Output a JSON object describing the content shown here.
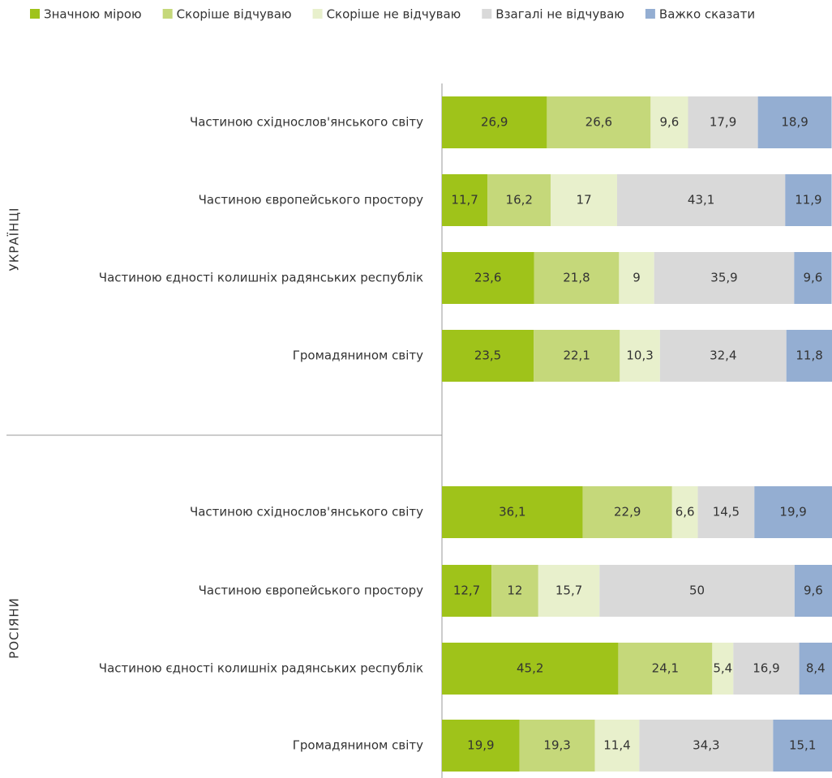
{
  "chart_data": [
    {
      "type": "stacked-bar",
      "group_label": "УКРАЇНЦІ",
      "xlim": [
        0,
        100
      ],
      "categories": [
        "Частиною східнослов'янського світу",
        "Частиною європейського простору",
        "Частиною єдності колишніх радянських республік",
        "Громадянином світу"
      ],
      "series": [
        {
          "name": "Значною мірою",
          "color": "#9fc31a",
          "values": [
            26.9,
            11.7,
            23.6,
            23.5
          ],
          "value_labels": [
            "26,9",
            "11,7",
            "23,6",
            "23,5"
          ]
        },
        {
          "name": "Скоріше відчуваю",
          "color": "#c5d87a",
          "values": [
            26.6,
            16.2,
            21.8,
            22.1
          ],
          "value_labels": [
            "26,6",
            "16,2",
            "21,8",
            "22,1"
          ]
        },
        {
          "name": "Скоріше не відчуваю",
          "color": "#e8f0cc",
          "values": [
            9.6,
            17,
            9,
            10.3
          ],
          "value_labels": [
            "9,6",
            "17",
            "9",
            "10,3"
          ]
        },
        {
          "name": "Взагалі не відчуваю",
          "color": "#d9d9d9",
          "values": [
            17.9,
            43.1,
            35.9,
            32.4
          ],
          "value_labels": [
            "17,9",
            "43,1",
            "35,9",
            "32,4"
          ]
        },
        {
          "name": "Важко сказати",
          "color": "#94aed2",
          "values": [
            18.9,
            11.9,
            9.6,
            11.8
          ],
          "value_labels": [
            "18,9",
            "11,9",
            "9,6",
            "11,8"
          ]
        }
      ]
    },
    {
      "type": "stacked-bar",
      "group_label": "РОСІЯНИ",
      "xlim": [
        0,
        100
      ],
      "categories": [
        "Частиною східнослов'янського світу",
        "Частиною європейського простору",
        "Частиною єдності колишніх радянських республік",
        "Громадянином світу"
      ],
      "series": [
        {
          "color": "#9fc31a",
          "values": [
            36.1,
            12.7,
            45.2,
            19.9
          ],
          "value_labels": [
            "36,1",
            "12,7",
            "45,2",
            "19,9"
          ]
        },
        {
          "color": "#c5d87a",
          "values": [
            22.9,
            12,
            24.1,
            19.3
          ],
          "value_labels": [
            "22,9",
            "12",
            "24,1",
            "19,3"
          ]
        },
        {
          "color": "#e8f0cc",
          "values": [
            6.6,
            15.7,
            5.4,
            11.4
          ],
          "value_labels": [
            "6,6",
            "15,7",
            "5,4",
            "11,4"
          ]
        },
        {
          "color": "#d9d9d9",
          "values": [
            14.5,
            50,
            16.9,
            34.3
          ],
          "value_labels": [
            "14,5",
            "50",
            "16,9",
            "34,3"
          ]
        },
        {
          "color": "#94aed2",
          "values": [
            19.9,
            9.6,
            8.4,
            15.1
          ],
          "value_labels": [
            "19,9",
            "9,6",
            "8,4",
            "15,1"
          ]
        }
      ]
    }
  ]
}
